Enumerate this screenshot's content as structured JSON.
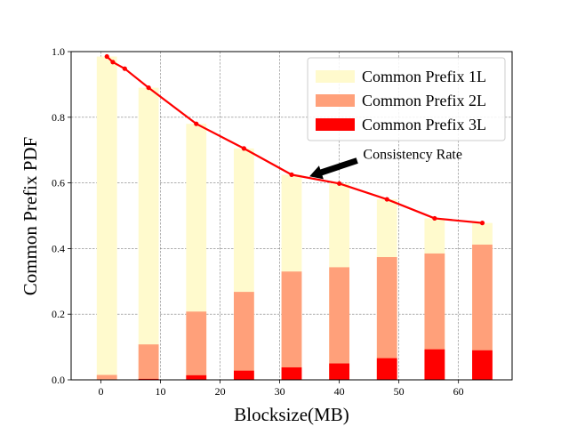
{
  "chart_data": {
    "type": "bar",
    "xlabel": "Blocksize(MB)",
    "ylabel": "Common Prefix PDF",
    "xlim": [
      -5,
      69
    ],
    "ylim": [
      0,
      1.0
    ],
    "xticks": [
      0,
      10,
      20,
      30,
      40,
      50,
      60
    ],
    "yticks": [
      0.0,
      0.2,
      0.4,
      0.6,
      0.8,
      1.0
    ],
    "xtick_labels": [
      "0",
      "10",
      "20",
      "30",
      "40",
      "50",
      "60"
    ],
    "ytick_labels": [
      "0.0",
      "0.2",
      "0.4",
      "0.6",
      "0.8",
      "1.0"
    ],
    "grid": true,
    "legend_position": "top-right",
    "bar_width": 3.4,
    "bar_x": [
      1,
      8,
      16,
      24,
      32,
      40,
      48,
      56,
      64
    ],
    "series": [
      {
        "name": "Common Prefix 1L",
        "color": "#fffacd",
        "values": [
          0.985,
          0.89,
          0.78,
          0.705,
          0.625,
          0.598,
          0.55,
          0.492,
          0.478
        ]
      },
      {
        "name": "Common Prefix 2L",
        "color": "#ffa07a",
        "values": [
          0.015,
          0.108,
          0.208,
          0.268,
          0.33,
          0.343,
          0.374,
          0.385,
          0.412
        ]
      },
      {
        "name": "Common Prefix 3L",
        "color": "#ff0000",
        "values": [
          0.0,
          0.003,
          0.014,
          0.028,
          0.038,
          0.05,
          0.066,
          0.093,
          0.09
        ]
      }
    ],
    "line": {
      "name": "Consistency Rate",
      "color": "#ff0000",
      "x": [
        1,
        2,
        4,
        8,
        16,
        24,
        32,
        40,
        48,
        56,
        64
      ],
      "y": [
        0.985,
        0.968,
        0.948,
        0.89,
        0.78,
        0.705,
        0.625,
        0.598,
        0.55,
        0.492,
        0.478
      ]
    },
    "annotation": {
      "text": "Consistency Rate",
      "text_x": 44,
      "text_y": 0.69,
      "arrow_from_x": 43,
      "arrow_from_y": 0.668,
      "arrow_to_x": 35,
      "arrow_to_y": 0.62
    }
  }
}
